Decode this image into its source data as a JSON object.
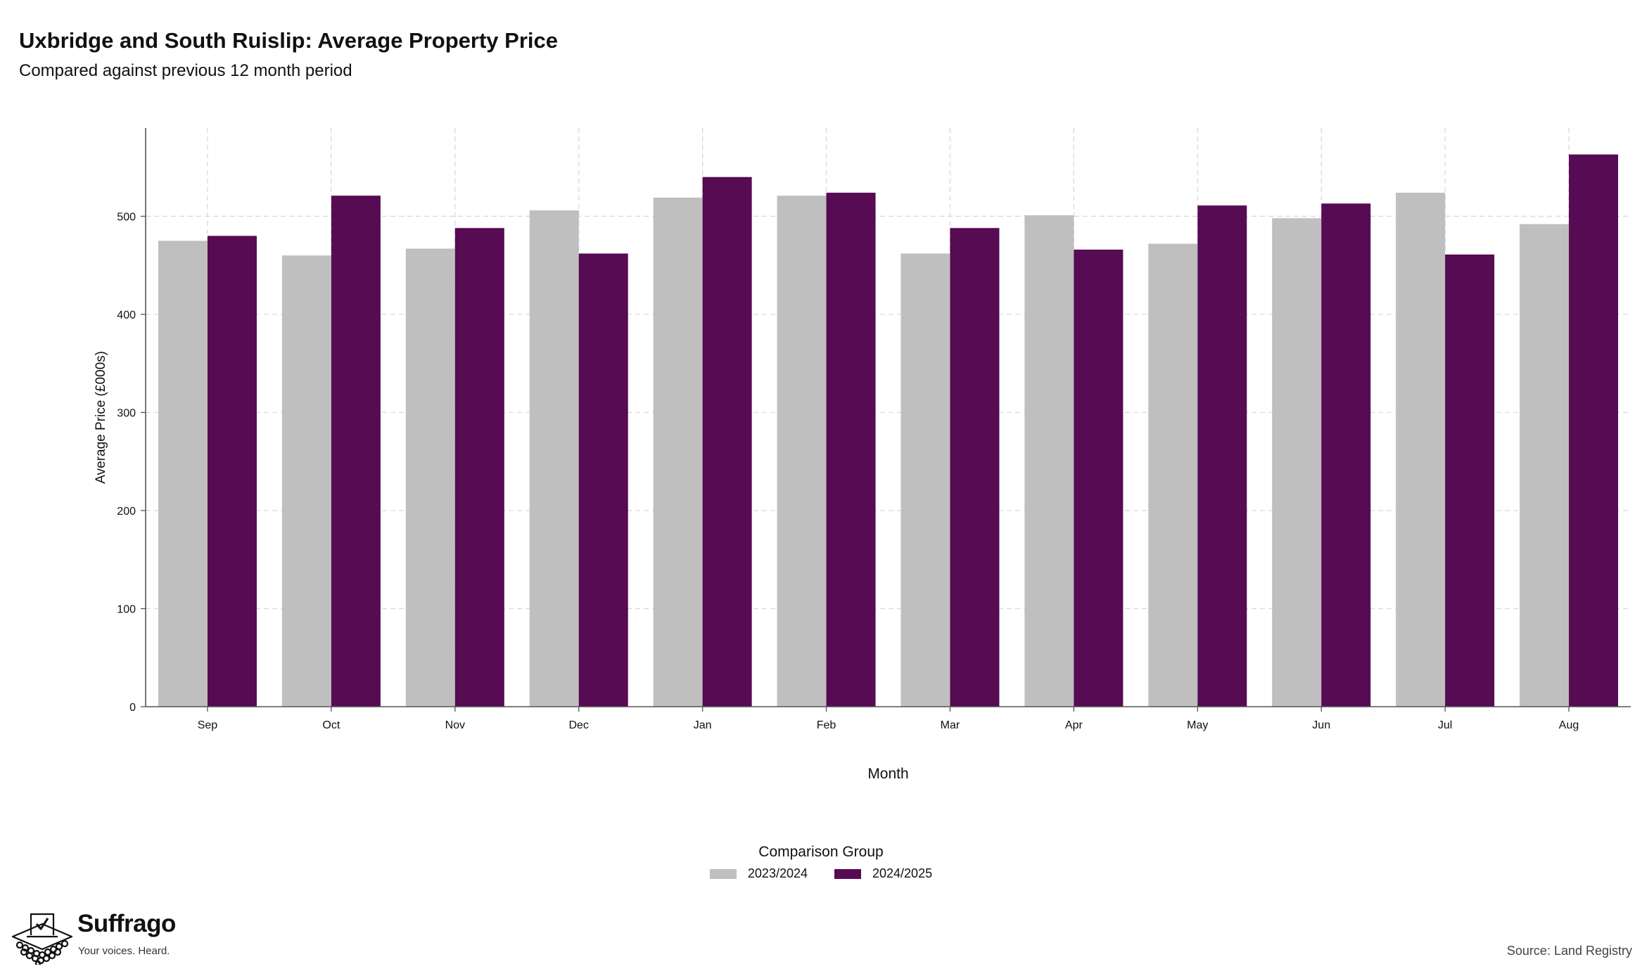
{
  "title": "Uxbridge and South Ruislip: Average Property Price",
  "subtitle": "Compared against previous 12 month period",
  "legend": {
    "title": "Comparison Group"
  },
  "brand": {
    "name": "Suffrago",
    "tagline": "Your voices. Heard."
  },
  "source": "Source: Land Registry",
  "chart_data": {
    "type": "bar",
    "xlabel": "Month",
    "ylabel": "Average Price (£000s)",
    "ylim": [
      0,
      590
    ],
    "yticks": [
      0,
      100,
      200,
      300,
      400,
      500
    ],
    "grid": true,
    "legend_position": "bottom",
    "categories": [
      "Sep",
      "Oct",
      "Nov",
      "Dec",
      "Jan",
      "Feb",
      "Mar",
      "Apr",
      "May",
      "Jun",
      "Jul",
      "Aug"
    ],
    "series": [
      {
        "name": "2023/2024",
        "color": "#bfbfbf",
        "values": [
          475,
          460,
          467,
          506,
          519,
          521,
          462,
          501,
          472,
          498,
          524,
          492
        ]
      },
      {
        "name": "2024/2025",
        "color": "#560b53",
        "values": [
          480,
          521,
          488,
          462,
          540,
          524,
          488,
          466,
          511,
          513,
          461,
          563
        ]
      }
    ]
  }
}
